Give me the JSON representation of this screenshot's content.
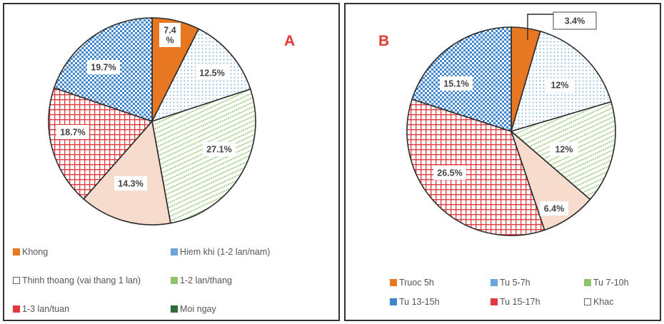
{
  "colors": {
    "orange": "#e87722",
    "blue": "#3f86cf",
    "light_blue": "#6ea4dc",
    "green": "#8fc46b",
    "peach": "#f7dccd",
    "red": "#e0393e",
    "dark_green": "#2e6b3a"
  },
  "chart_data": [
    {
      "type": "pie",
      "panel_label": "A",
      "title": "",
      "slices": [
        {
          "name": "Khong",
          "value": 7.4,
          "label": "7.4\n%",
          "color": "#e87722",
          "pattern": "solid"
        },
        {
          "name": "Hiem khi (1-2 lan/nam)",
          "value": 12.5,
          "label": "12.5%",
          "color": "#6ea4dc",
          "pattern": "dots"
        },
        {
          "name": "1-2 lan/thang",
          "value": 27.1,
          "label": "27.1%",
          "color": "#8fc46b",
          "pattern": "stripes"
        },
        {
          "name": "Thinh thoang (vai thang 1 lan)",
          "value": 14.3,
          "label": "14.3%",
          "color": "#f7dccd",
          "pattern": "fill"
        },
        {
          "name": "1-3 lan/tuan",
          "value": 18.7,
          "label": "18.7%",
          "color": "#e0393e",
          "pattern": "grid"
        },
        {
          "name": "Moi ngay",
          "value": 19.7,
          "label": "19.7%",
          "color": "#3f86cf",
          "pattern": "checks"
        }
      ],
      "legend": [
        {
          "label": "Khong",
          "color": "#e87722",
          "pattern": "solid"
        },
        {
          "label": "Hiem khi (1-2 lan/nam)",
          "color": "#6ea4dc",
          "pattern": "dots"
        },
        {
          "label": "Thinh thoang (vai thang 1 lan)",
          "color": "#aaaaaa",
          "pattern": "fill"
        },
        {
          "label": "1-2 lan/thang",
          "color": "#8fc46b",
          "pattern": "stripes"
        },
        {
          "label": "1-3 lan/tuan",
          "color": "#e0393e",
          "pattern": "grid"
        },
        {
          "label": "Moi ngay",
          "color": "#2e6b3a",
          "pattern": "checks"
        }
      ],
      "legend_placement": "bottom"
    },
    {
      "type": "pie",
      "panel_label": "B",
      "title": "",
      "slices": [
        {
          "name": "Truoc 5h",
          "value": 3.4,
          "label": "3.4%",
          "color": "#e87722",
          "pattern": "solid"
        },
        {
          "name": "Tu 5-7h",
          "value": 12,
          "label": "12%",
          "color": "#6ea4dc",
          "pattern": "dots"
        },
        {
          "name": "Tu 7-10h",
          "value": 12,
          "label": "12%",
          "color": "#8fc46b",
          "pattern": "stripes"
        },
        {
          "name": "Khac",
          "value": 6.4,
          "label": "6.4%",
          "color": "#f7dccd",
          "pattern": "fill"
        },
        {
          "name": "Tu 15-17h",
          "value": 26.5,
          "label": "26.5%",
          "color": "#e0393e",
          "pattern": "grid"
        },
        {
          "name": "Tu 13-15h",
          "value": 15.1,
          "label": "15.1%",
          "color": "#3f86cf",
          "pattern": "checks"
        }
      ],
      "legend": [
        {
          "label": "Truoc 5h",
          "color": "#e87722",
          "pattern": "solid"
        },
        {
          "label": "Tu 5-7h",
          "color": "#6ea4dc",
          "pattern": "dots"
        },
        {
          "label": "Tu 7-10h",
          "color": "#8fc46b",
          "pattern": "stripes"
        },
        {
          "label": "Tu 13-15h",
          "color": "#3f86cf",
          "pattern": "checks"
        },
        {
          "label": "Tu 15-17h",
          "color": "#e0393e",
          "pattern": "grid"
        },
        {
          "label": "Khac",
          "color": "#aaaaaa",
          "pattern": "fill"
        }
      ],
      "legend_placement": "bottom"
    }
  ]
}
